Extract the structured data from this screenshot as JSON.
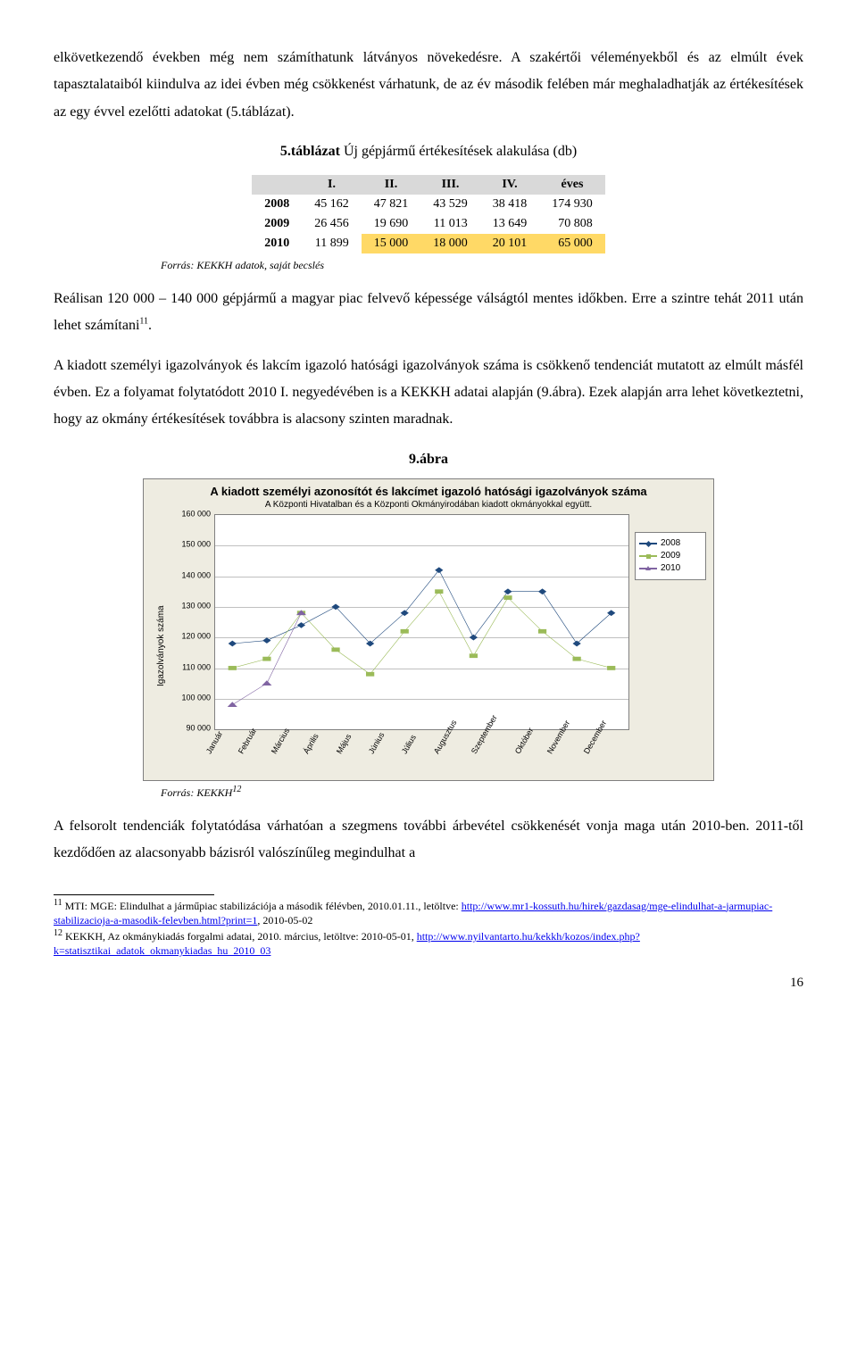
{
  "para1": "elkövetkezendő években még nem számíthatunk látványos növekedésre. A szakértői véleményekből és az elmúlt évek tapasztalataiból kiindulva az idei évben még csökkenést várhatunk, de az év második felében már meghaladhatják az értékesítések az egy évvel ezelőtti adatokat (5.táblázat).",
  "table": {
    "caption_bold": "5.táblázat",
    "caption_rest": " Új gépjármű értékesítések alakulása (db)",
    "headers": [
      "",
      "I.",
      "II.",
      "III.",
      "IV.",
      "éves"
    ],
    "rows": [
      {
        "year": "2008",
        "cells": [
          "45 162",
          "47 821",
          "43 529",
          "38 418",
          "174 930"
        ],
        "hl": []
      },
      {
        "year": "2009",
        "cells": [
          "26 456",
          "19 690",
          "11 013",
          "13 649",
          "70 808"
        ],
        "hl": []
      },
      {
        "year": "2010",
        "cells": [
          "11 899",
          "15 000",
          "18 000",
          "20 101",
          "65 000"
        ],
        "hl": [
          1,
          2,
          3,
          4
        ]
      }
    ],
    "source": "Forrás: KEKKH adatok, saját becslés"
  },
  "para2_a": "Reálisan 120 000 – 140 000 gépjármű a magyar piac felvevő képessége válságtól mentes időkben. Erre a szintre tehát 2011 után lehet számítani",
  "para2_sup": "11",
  "para2_b": ".",
  "para3": "A kiadott személyi igazolványok és lakcím igazoló hatósági igazolványok száma is csökkenő tendenciát mutatott az elmúlt másfél évben. Ez a folyamat folytatódott 2010 I. negyedévében is a KEKKH adatai alapján (9.ábra). Ezek alapján arra lehet következtetni, hogy az okmány értékesítések továbbra is alacsony szinten maradnak.",
  "fig": {
    "caption": "9.ábra",
    "title": "A kiadott személyi azonosítót és lakcímet igazoló hatósági igazolványok száma",
    "subtitle": "A Központi Hivatalban és a Központi Okmányirodában kiadott okmányokkal együtt.",
    "ylabel": "Igazolványok száma",
    "ymin": 90000,
    "ymax": 160000,
    "ystep": 10000,
    "months": [
      "Január",
      "Február",
      "Március",
      "Április",
      "Május",
      "Június",
      "Július",
      "Augusztus",
      "Szeptember",
      "Október",
      "November",
      "December"
    ],
    "series": [
      {
        "name": "2008",
        "color": "#1f497d",
        "marker": "diamond",
        "values": [
          118000,
          119000,
          124000,
          130000,
          118000,
          128000,
          142000,
          120000,
          135000,
          135000,
          118000,
          128000
        ]
      },
      {
        "name": "2009",
        "color": "#9bbb59",
        "marker": "square",
        "values": [
          110000,
          113000,
          128000,
          116000,
          108000,
          122000,
          135000,
          114000,
          133000,
          122000,
          113000,
          110000
        ]
      },
      {
        "name": "2010",
        "color": "#8064a2",
        "marker": "triangle",
        "values": [
          98000,
          105000,
          128000,
          null,
          null,
          null,
          null,
          null,
          null,
          null,
          null,
          null
        ]
      }
    ],
    "bg": "#eeece1",
    "plot_bg": "#ffffff",
    "grid": "#c0c0c0",
    "source_prefix": "Forrás: KEKKH",
    "source_sup": "12"
  },
  "para4": "A felsorolt tendenciák folytatódása várhatóan a szegmens további árbevétel csökkenését vonja maga után 2010-ben. 2011-től kezdődően az alacsonyabb bázisról valószínűleg megindulhat a",
  "footnotes": [
    {
      "num": "11",
      "text_a": " MTI: MGE: Elindulhat a járműpiac stabilizációja a második félévben, 2010.01.11., letöltve: ",
      "link1": "http://www.mr1-kossuth.hu/hirek/gazdasag/mge-elindulhat-a-jarmupiac-stabilizacioja-a-masodik-felevben.html?print=1",
      "link1_text": "http://www.mr1-kossuth.hu/hirek/gazdasag/mge-elindulhat-a-jarmupiac-stabilizacioja-a-masodik-felevben.html?print=1",
      "text_b": ", 2010-05-02"
    },
    {
      "num": "12",
      "text_a": " KEKKH, Az okmánykiadás forgalmi adatai, 2010. március, letöltve: 2010-05-01, ",
      "link1": "http://www.nyilvantarto.hu/kekkh/kozos/index.php?k=statisztikai_adatok_okmanykiadas_hu_2010_03",
      "link1_text": "http://www.nyilvantarto.hu/kekkh/kozos/index.php?k=statisztikai_adatok_okmanykiadas_hu_2010_03",
      "text_b": ""
    }
  ],
  "pagenum": "16"
}
